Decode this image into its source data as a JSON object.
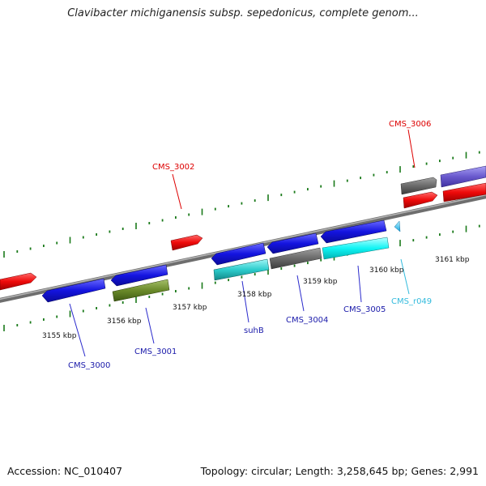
{
  "title": "Clavibacter michiganensis subsp. sepedonicus, complete genom...",
  "footer": {
    "accession": "Accession: NC_010407",
    "summary": "Topology: circular; Length: 3,258,645 bp; Genes: 2,991"
  },
  "scale_labels": [
    "3155 kbp",
    "3156 kbp",
    "3157 kbp",
    "3158 kbp",
    "3159 kbp",
    "3160 kbp",
    "3161 kbp"
  ],
  "gene_labels": [
    "CMS_3000",
    "CMS_3001",
    "CMS_3002",
    "suhB",
    "CMS_3004",
    "CMS_3005",
    "CMS_r049",
    "CMS_3006"
  ],
  "colors": {
    "backbone": "#808080",
    "tick": "#1a7a1a",
    "red_label": "#dd0000",
    "blue_label": "#1a1aaa",
    "cyan_label": "#33bbdd"
  }
}
